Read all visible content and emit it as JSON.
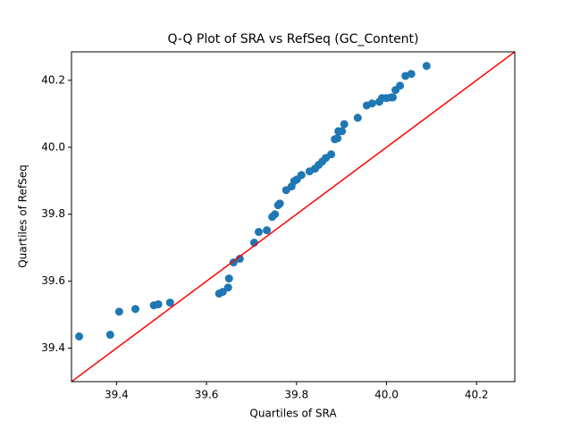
{
  "chart_data": {
    "type": "scatter",
    "title": "Q-Q Plot of SRA vs RefSeq (GC_Content)",
    "xlabel": "Quartiles of SRA",
    "ylabel": "Quartiles of RefSeq",
    "x": [
      39.317,
      39.386,
      39.406,
      39.442,
      39.483,
      39.493,
      39.519,
      39.628,
      39.636,
      39.648,
      39.65,
      39.66,
      39.674,
      39.706,
      39.716,
      39.734,
      39.746,
      39.752,
      39.759,
      39.763,
      39.777,
      39.789,
      39.795,
      39.801,
      39.811,
      39.829,
      39.841,
      39.849,
      39.857,
      39.865,
      39.877,
      39.885,
      39.891,
      39.893,
      39.901,
      39.906,
      39.936,
      39.956,
      39.968,
      39.984,
      39.99,
      40.0,
      40.01,
      40.014,
      40.02,
      40.03,
      40.042,
      40.055,
      40.089
    ],
    "values": [
      39.435,
      39.44,
      39.509,
      39.517,
      39.528,
      39.531,
      39.536,
      39.563,
      39.568,
      39.581,
      39.608,
      39.656,
      39.667,
      39.715,
      39.747,
      39.752,
      39.792,
      39.8,
      39.827,
      39.832,
      39.872,
      39.883,
      39.899,
      39.904,
      39.917,
      39.928,
      39.936,
      39.947,
      39.957,
      39.968,
      39.979,
      40.024,
      40.027,
      40.048,
      40.048,
      40.069,
      40.088,
      40.125,
      40.131,
      40.136,
      40.147,
      40.147,
      40.149,
      40.149,
      40.171,
      40.184,
      40.213,
      40.219,
      40.243
    ],
    "color": "#1f77b4",
    "xlim": [
      39.3,
      40.285
    ],
    "ylim": [
      39.3,
      40.285
    ],
    "xticks": [
      39.4,
      39.6,
      39.8,
      {
        "value": 40,
        "label": "40.0"
      },
      40.2
    ],
    "yticks": [
      39.4,
      39.6,
      39.8,
      {
        "value": 40,
        "label": "40.0"
      },
      40.2
    ],
    "identity_line": true,
    "identity_line_color": "#ff0000",
    "grid": false
  }
}
